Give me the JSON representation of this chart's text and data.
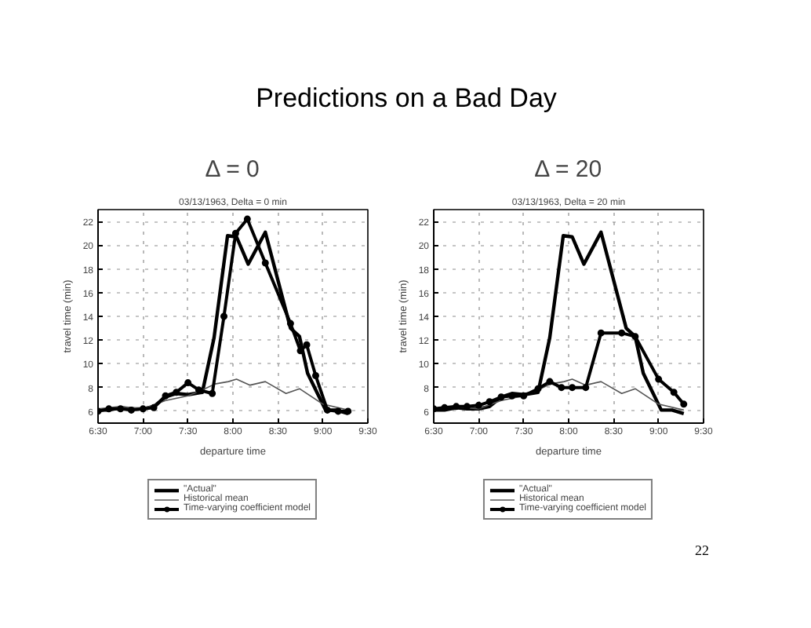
{
  "chart_data": [
    {
      "type": "line",
      "title": "Δ = 0",
      "subtitle": "03/13/1963, Delta = 0 min",
      "xlabel": "departure time",
      "ylabel": "travel time (min)",
      "xlim": [
        6.5,
        9.5
      ],
      "xticks": [
        {
          "value": 6.5,
          "label": "6:30"
        },
        {
          "value": 7,
          "label": "7:00"
        },
        {
          "value": 7.5,
          "label": "7:30"
        },
        {
          "value": 8,
          "label": "8:00"
        },
        {
          "value": 8.5,
          "label": "8:30"
        },
        {
          "value": 9,
          "label": "9:00"
        },
        {
          "value": 9.5,
          "label": "9:30"
        }
      ],
      "ylim": [
        5,
        23
      ],
      "yticks": [
        6,
        8,
        10,
        12,
        14,
        16,
        18,
        20,
        22
      ],
      "grid": true,
      "legend": "bottom",
      "series": [
        {
          "name": "\"Actual\"",
          "color": "#000000",
          "x": [
            6.5,
            6.62,
            6.75,
            6.87,
            7.0,
            7.12,
            7.25,
            7.37,
            7.5,
            7.66,
            7.79,
            7.94,
            8.04,
            8.17,
            8.36,
            8.64,
            8.74,
            8.83,
            9.03,
            9.15,
            9.28
          ],
          "values": [
            6.1,
            6.1,
            6.3,
            6.2,
            6.2,
            6.4,
            7.2,
            7.5,
            7.4,
            7.6,
            12.2,
            20.8,
            20.7,
            18.4,
            21.1,
            13.0,
            12.3,
            9.2,
            6.1,
            6.1,
            5.8
          ]
        },
        {
          "name": "Historical mean",
          "color": "#555555",
          "x": [
            6.5,
            6.75,
            7.0,
            7.25,
            7.5,
            7.66,
            7.8,
            7.95,
            8.04,
            8.19,
            8.36,
            8.59,
            8.74,
            9.0,
            9.28
          ],
          "values": [
            6.2,
            6.4,
            6.2,
            6.9,
            7.3,
            7.8,
            8.3,
            8.5,
            8.7,
            8.2,
            8.5,
            7.5,
            7.9,
            6.6,
            6.1
          ]
        },
        {
          "name": "Time-varying coefficient model",
          "color": "#000000",
          "marker": "circle",
          "x": [
            6.5,
            6.62,
            6.75,
            6.87,
            7.0,
            7.12,
            7.25,
            7.37,
            7.5,
            7.62,
            7.77,
            7.9,
            8.03,
            8.16,
            8.36,
            8.64,
            8.75,
            8.82,
            8.92,
            9.05,
            9.17,
            9.28
          ],
          "values": [
            6.0,
            6.2,
            6.2,
            6.1,
            6.2,
            6.3,
            7.3,
            7.6,
            8.4,
            7.8,
            7.5,
            14.0,
            21.0,
            22.2,
            18.5,
            13.4,
            11.1,
            11.6,
            9.0,
            6.1,
            6.0,
            6.0
          ]
        }
      ]
    },
    {
      "type": "line",
      "title": "Δ = 20",
      "subtitle": "03/13/1963, Delta = 20 min",
      "xlabel": "departure time",
      "ylabel": "travel time (min)",
      "xlim": [
        6.5,
        9.5
      ],
      "xticks": [
        {
          "value": 6.5,
          "label": "6:30"
        },
        {
          "value": 7,
          "label": "7:00"
        },
        {
          "value": 7.5,
          "label": "7:30"
        },
        {
          "value": 8,
          "label": "8:00"
        },
        {
          "value": 8.5,
          "label": "8:30"
        },
        {
          "value": 9,
          "label": "9:00"
        },
        {
          "value": 9.5,
          "label": "9:30"
        }
      ],
      "ylim": [
        5,
        23
      ],
      "yticks": [
        6,
        8,
        10,
        12,
        14,
        16,
        18,
        20,
        22
      ],
      "grid": true,
      "legend": "bottom",
      "series": [
        {
          "name": "\"Actual\"",
          "color": "#000000",
          "x": [
            6.5,
            6.62,
            6.75,
            6.87,
            7.0,
            7.12,
            7.25,
            7.37,
            7.5,
            7.66,
            7.79,
            7.94,
            8.04,
            8.17,
            8.36,
            8.64,
            8.74,
            8.83,
            9.03,
            9.15,
            9.28
          ],
          "values": [
            6.1,
            6.1,
            6.3,
            6.2,
            6.2,
            6.4,
            7.2,
            7.5,
            7.4,
            7.6,
            12.2,
            20.8,
            20.7,
            18.4,
            21.1,
            13.0,
            12.3,
            9.2,
            6.1,
            6.1,
            5.8
          ]
        },
        {
          "name": "Historical mean",
          "color": "#555555",
          "x": [
            6.5,
            6.75,
            7.0,
            7.25,
            7.5,
            7.66,
            7.8,
            7.95,
            8.04,
            8.19,
            8.36,
            8.59,
            8.74,
            9.0,
            9.28
          ],
          "values": [
            6.2,
            6.4,
            6.2,
            6.9,
            7.3,
            7.8,
            8.3,
            8.5,
            8.7,
            8.2,
            8.5,
            7.5,
            7.9,
            6.6,
            6.1
          ]
        },
        {
          "name": "Time-varying coefficient model",
          "color": "#000000",
          "marker": "circle",
          "x": [
            6.5,
            6.62,
            6.75,
            6.87,
            7.0,
            7.12,
            7.25,
            7.37,
            7.5,
            7.66,
            7.79,
            7.92,
            8.04,
            8.19,
            8.36,
            8.59,
            8.74,
            9.0,
            9.17,
            9.28
          ],
          "values": [
            6.2,
            6.3,
            6.4,
            6.4,
            6.5,
            6.8,
            7.2,
            7.3,
            7.3,
            7.9,
            8.5,
            8.0,
            8.0,
            8.0,
            12.6,
            12.6,
            12.3,
            8.7,
            7.6,
            6.6
          ]
        }
      ]
    },
    {
      "type": "other",
      "title": "Predictions on a Bad Day",
      "annotations": [
        "22"
      ]
    }
  ]
}
